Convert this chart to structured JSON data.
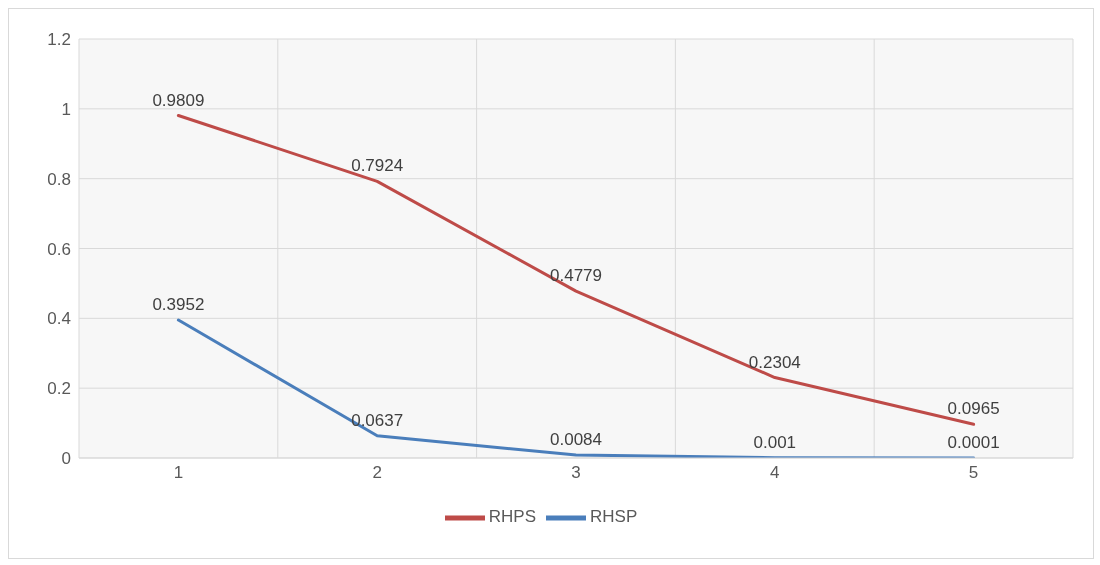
{
  "chart_data": {
    "type": "line",
    "categories": [
      "1",
      "2",
      "3",
      "4",
      "5"
    ],
    "series": [
      {
        "name": "RHSP",
        "color": "#4a7ebb",
        "values": [
          0.3952,
          0.0637,
          0.0084,
          0.001,
          0.0001
        ]
      },
      {
        "name": "RHPS",
        "color": "#be4b48",
        "values": [
          0.9809,
          0.7924,
          0.4779,
          0.2304,
          0.0965
        ]
      }
    ],
    "ylim": [
      0,
      1.2
    ],
    "yticks": [
      0,
      0.2,
      0.4,
      0.6,
      0.8,
      1,
      1.2
    ],
    "grid": true,
    "legend": "bottom",
    "marker": "none",
    "line_style": "solid",
    "data_labels": true
  }
}
